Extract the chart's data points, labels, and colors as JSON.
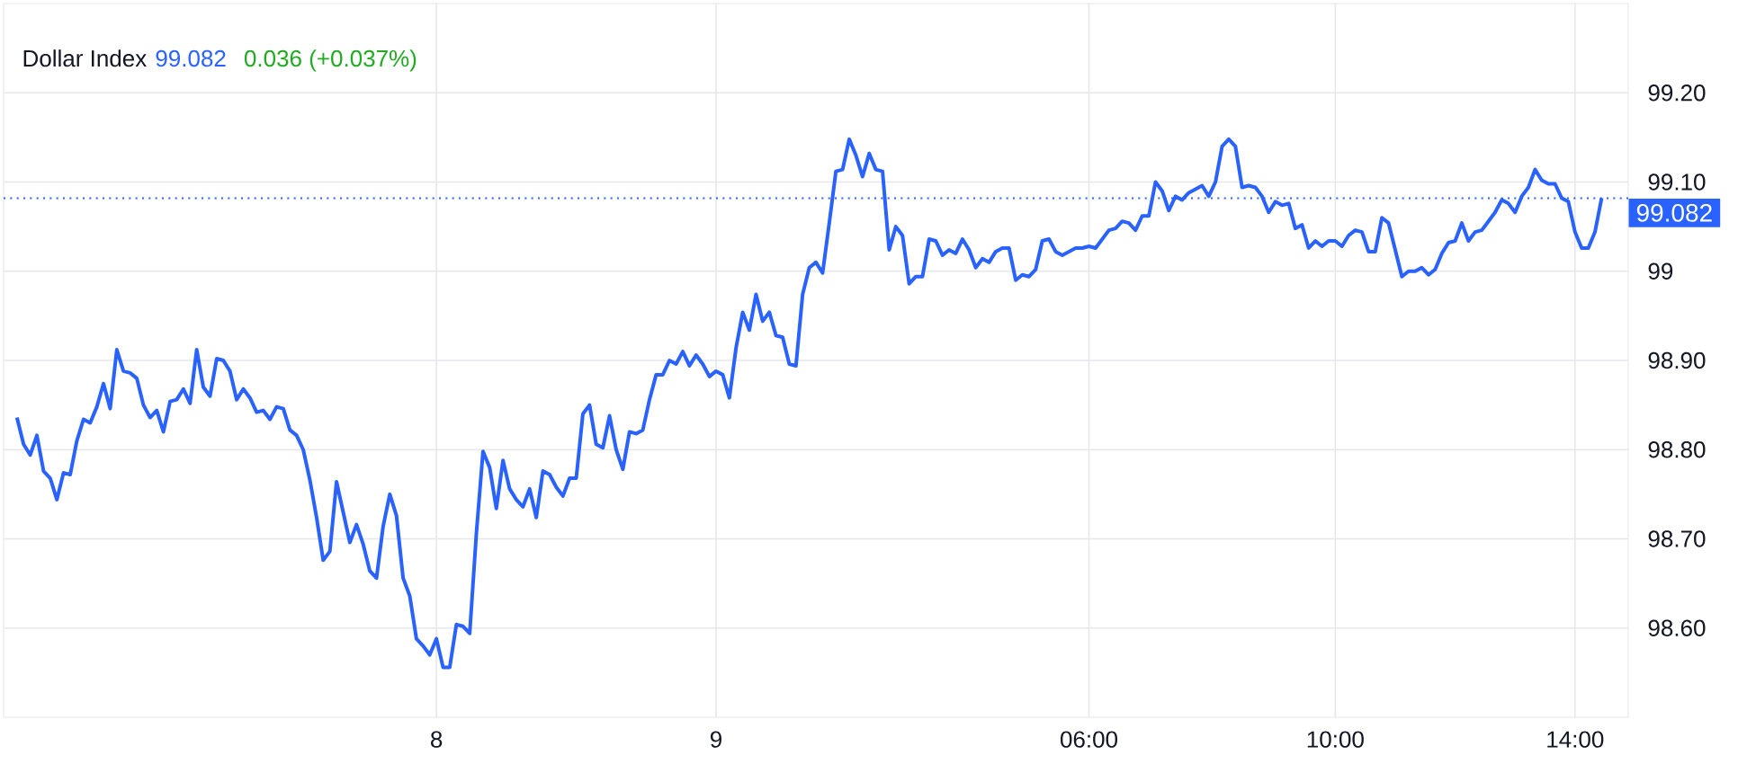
{
  "chart_data": {
    "type": "line",
    "title": "Dollar Index",
    "annotations": [
      "99.082",
      "0.036 (+0.037%)"
    ],
    "categories": [
      null,
      null,
      null,
      null,
      null,
      null,
      null,
      null,
      null,
      null,
      null,
      null,
      null,
      null,
      null,
      null,
      null,
      null,
      null,
      null,
      null,
      null,
      null,
      null,
      null,
      null,
      null,
      null,
      null,
      null,
      null,
      null,
      null,
      null,
      null,
      null,
      null,
      null,
      null,
      null,
      null,
      null,
      null,
      null,
      null,
      null,
      null,
      null,
      null,
      null,
      null,
      null,
      null,
      null,
      null,
      null,
      null,
      null,
      null,
      null,
      null,
      null,
      null,
      "8",
      null,
      null,
      null,
      null,
      null,
      null,
      null,
      null,
      null,
      null,
      null,
      null,
      null,
      null,
      null,
      null,
      null,
      null,
      null,
      null,
      null,
      null,
      null,
      null,
      null,
      null,
      null,
      null,
      null,
      null,
      null,
      null,
      null,
      null,
      null,
      null,
      null,
      null,
      null,
      null,
      null,
      "9",
      null,
      null,
      null,
      null,
      null,
      null,
      null,
      null,
      null,
      null,
      null,
      null,
      null,
      null,
      null,
      null,
      null,
      null,
      null,
      null,
      null,
      null,
      null,
      null,
      null,
      null,
      null,
      null,
      null,
      null,
      null,
      null,
      null,
      null,
      null,
      null,
      null,
      null,
      null,
      null,
      null,
      null,
      null,
      null,
      null,
      null,
      null,
      null,
      null,
      null,
      null,
      null,
      null,
      null,
      null,
      "06:00",
      null,
      null,
      null,
      null,
      null,
      null,
      null,
      null,
      null,
      null,
      null,
      null,
      null,
      null,
      null,
      null,
      null,
      null,
      null,
      null,
      null,
      null,
      null,
      null,
      null,
      null,
      null,
      null,
      null,
      null,
      null,
      null,
      null,
      null,
      null,
      null,
      "10:00",
      null,
      null,
      null,
      null,
      null,
      null,
      null,
      null,
      null,
      null,
      null,
      null,
      null,
      null,
      null,
      null,
      null,
      null,
      null,
      null,
      null,
      null,
      null,
      null,
      null,
      null,
      null,
      null,
      null,
      null,
      null,
      null,
      null,
      null,
      null,
      "14:00",
      null,
      null,
      null,
      null
    ],
    "series": [
      {
        "color": "#2962ff",
        "values": [
          98.836,
          98.806,
          98.794,
          98.816,
          98.776,
          98.768,
          98.744,
          98.774,
          98.772,
          98.81,
          98.834,
          98.83,
          98.848,
          98.874,
          98.846,
          98.912,
          98.888,
          98.886,
          98.88,
          98.85,
          98.836,
          98.844,
          98.82,
          98.854,
          98.856,
          98.868,
          98.852,
          98.912,
          98.87,
          98.86,
          98.902,
          98.9,
          98.888,
          98.856,
          98.868,
          98.858,
          98.842,
          98.844,
          98.834,
          98.848,
          98.846,
          98.822,
          98.816,
          98.8,
          98.766,
          98.724,
          98.676,
          98.686,
          98.764,
          98.73,
          98.696,
          98.716,
          98.694,
          98.664,
          98.656,
          98.714,
          98.75,
          98.726,
          98.656,
          98.636,
          98.588,
          98.58,
          98.57,
          98.588,
          98.556,
          98.556,
          98.604,
          98.602,
          98.594,
          98.706,
          98.798,
          98.78,
          98.734,
          98.788,
          98.756,
          98.744,
          98.736,
          98.756,
          98.724,
          98.776,
          98.772,
          98.758,
          98.748,
          98.768,
          98.768,
          98.84,
          98.85,
          98.806,
          98.802,
          98.838,
          98.8,
          98.778,
          98.82,
          98.818,
          98.822,
          98.856,
          98.884,
          98.884,
          98.9,
          98.896,
          98.91,
          98.894,
          98.906,
          98.896,
          98.882,
          98.888,
          98.884,
          98.858,
          98.914,
          98.954,
          98.934,
          98.974,
          98.944,
          98.954,
          98.928,
          98.926,
          98.896,
          98.894,
          98.974,
          99.004,
          99.01,
          98.998,
          99.054,
          99.112,
          99.114,
          99.148,
          99.13,
          99.106,
          99.132,
          99.114,
          99.112,
          99.024,
          99.05,
          99.04,
          98.986,
          98.994,
          98.994,
          99.036,
          99.034,
          99.018,
          99.024,
          99.02,
          99.036,
          99.024,
          99.004,
          99.014,
          99.01,
          99.022,
          99.026,
          99.026,
          98.99,
          98.996,
          98.994,
          99.002,
          99.034,
          99.036,
          99.022,
          99.018,
          99.022,
          99.026,
          99.026,
          99.028,
          99.026,
          99.036,
          99.046,
          99.048,
          99.056,
          99.054,
          99.046,
          99.062,
          99.062,
          99.1,
          99.09,
          99.068,
          99.084,
          99.08,
          99.088,
          99.092,
          99.096,
          99.084,
          99.1,
          99.14,
          99.148,
          99.14,
          99.094,
          99.096,
          99.094,
          99.084,
          99.066,
          99.078,
          99.074,
          99.076,
          99.048,
          99.052,
          99.026,
          99.034,
          99.028,
          99.034,
          99.034,
          99.028,
          99.04,
          99.046,
          99.044,
          99.022,
          99.022,
          99.06,
          99.054,
          99.024,
          98.994,
          99.0,
          99.0,
          99.004,
          98.996,
          99.002,
          99.02,
          99.032,
          99.034,
          99.054,
          99.034,
          99.044,
          99.046,
          99.056,
          99.066,
          99.08,
          99.076,
          99.066,
          99.084,
          99.094,
          99.114,
          99.102,
          99.098,
          99.098,
          99.082,
          99.078,
          99.044,
          99.026,
          99.026,
          99.044,
          99.082
        ]
      }
    ],
    "ylim": [
      98.5,
      99.3
    ],
    "yticks": [
      {
        "value": 98.6,
        "label": "98.60"
      },
      {
        "value": 98.7,
        "label": "98.70"
      },
      {
        "value": 98.8,
        "label": "98.80"
      },
      {
        "value": 98.9,
        "label": "98.90"
      },
      99,
      {
        "value": 99.1,
        "label": "99.10"
      },
      {
        "value": 99.2,
        "label": "99.20"
      }
    ],
    "ref_lines": [
      {
        "axis": "y",
        "value": 99.082,
        "label": "99.082",
        "color": "#2962ff",
        "line_style": "dotted"
      }
    ],
    "grid": true,
    "marker": "none",
    "line_style": "solid"
  }
}
